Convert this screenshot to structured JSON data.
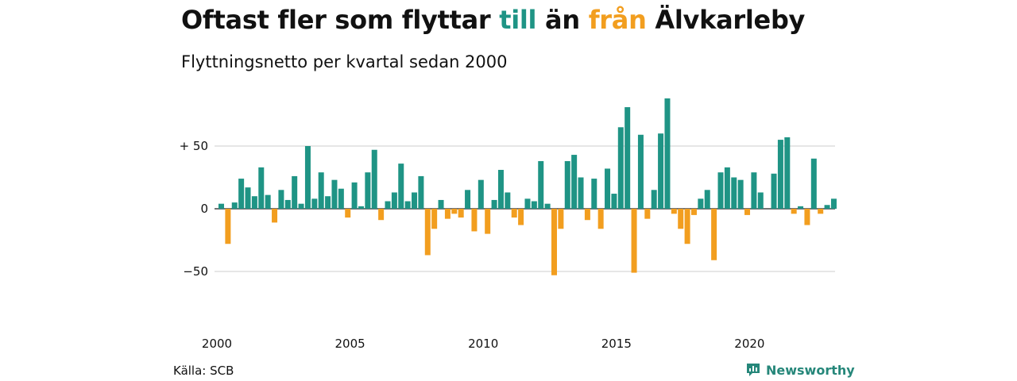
{
  "title": {
    "part1": "Oftast fler som flyttar ",
    "till": "till",
    "part2": " än ",
    "fran": "från",
    "part3": " Älvkarleby"
  },
  "subtitle": "Flyttningsnetto per kvartal sedan 2000",
  "source": "Källa: SCB",
  "brand": "Newsworthy",
  "colors": {
    "positive": "#1f9485",
    "negative": "#f29e1f",
    "grid": "#dddddd"
  },
  "chart_data": {
    "type": "bar",
    "title": "Oftast fler som flyttar till än från Älvkarleby",
    "subtitle": "Flyttningsnetto per kvartal sedan 2000",
    "xlabel": "",
    "ylabel": "",
    "ylim": [
      -75,
      90
    ],
    "y_ticks": [
      {
        "value": 50,
        "label": "+ 50"
      },
      {
        "value": 0,
        "label": "0"
      },
      {
        "value": -50,
        "label": "−50"
      }
    ],
    "x_ticks": [
      {
        "value": 2000,
        "label": "2000"
      },
      {
        "value": 2005,
        "label": "2005"
      },
      {
        "value": 2010,
        "label": "2010"
      },
      {
        "value": 2015,
        "label": "2015"
      },
      {
        "value": 2020,
        "label": "2020"
      }
    ],
    "start_year": 2000,
    "periods_per_year": 4,
    "values": [
      4,
      -28,
      5,
      24,
      17,
      10,
      33,
      11,
      -11,
      15,
      7,
      26,
      4,
      50,
      8,
      29,
      10,
      23,
      16,
      -7,
      21,
      2,
      29,
      47,
      -9,
      6,
      13,
      36,
      6,
      13,
      26,
      -37,
      -16,
      7,
      -8,
      -4,
      -7,
      15,
      -18,
      23,
      -20,
      7,
      31,
      13,
      -7,
      -13,
      8,
      6,
      38,
      4,
      -53,
      -16,
      38,
      43,
      25,
      -9,
      24,
      -16,
      32,
      12,
      65,
      81,
      -51,
      59,
      -8,
      15,
      60,
      88,
      -4,
      -16,
      -28,
      -5,
      8,
      15,
      -41,
      29,
      33,
      25,
      23,
      -5,
      29,
      13,
      0,
      28,
      55,
      57,
      -4,
      2,
      -13,
      40,
      -4,
      3,
      8
    ]
  }
}
